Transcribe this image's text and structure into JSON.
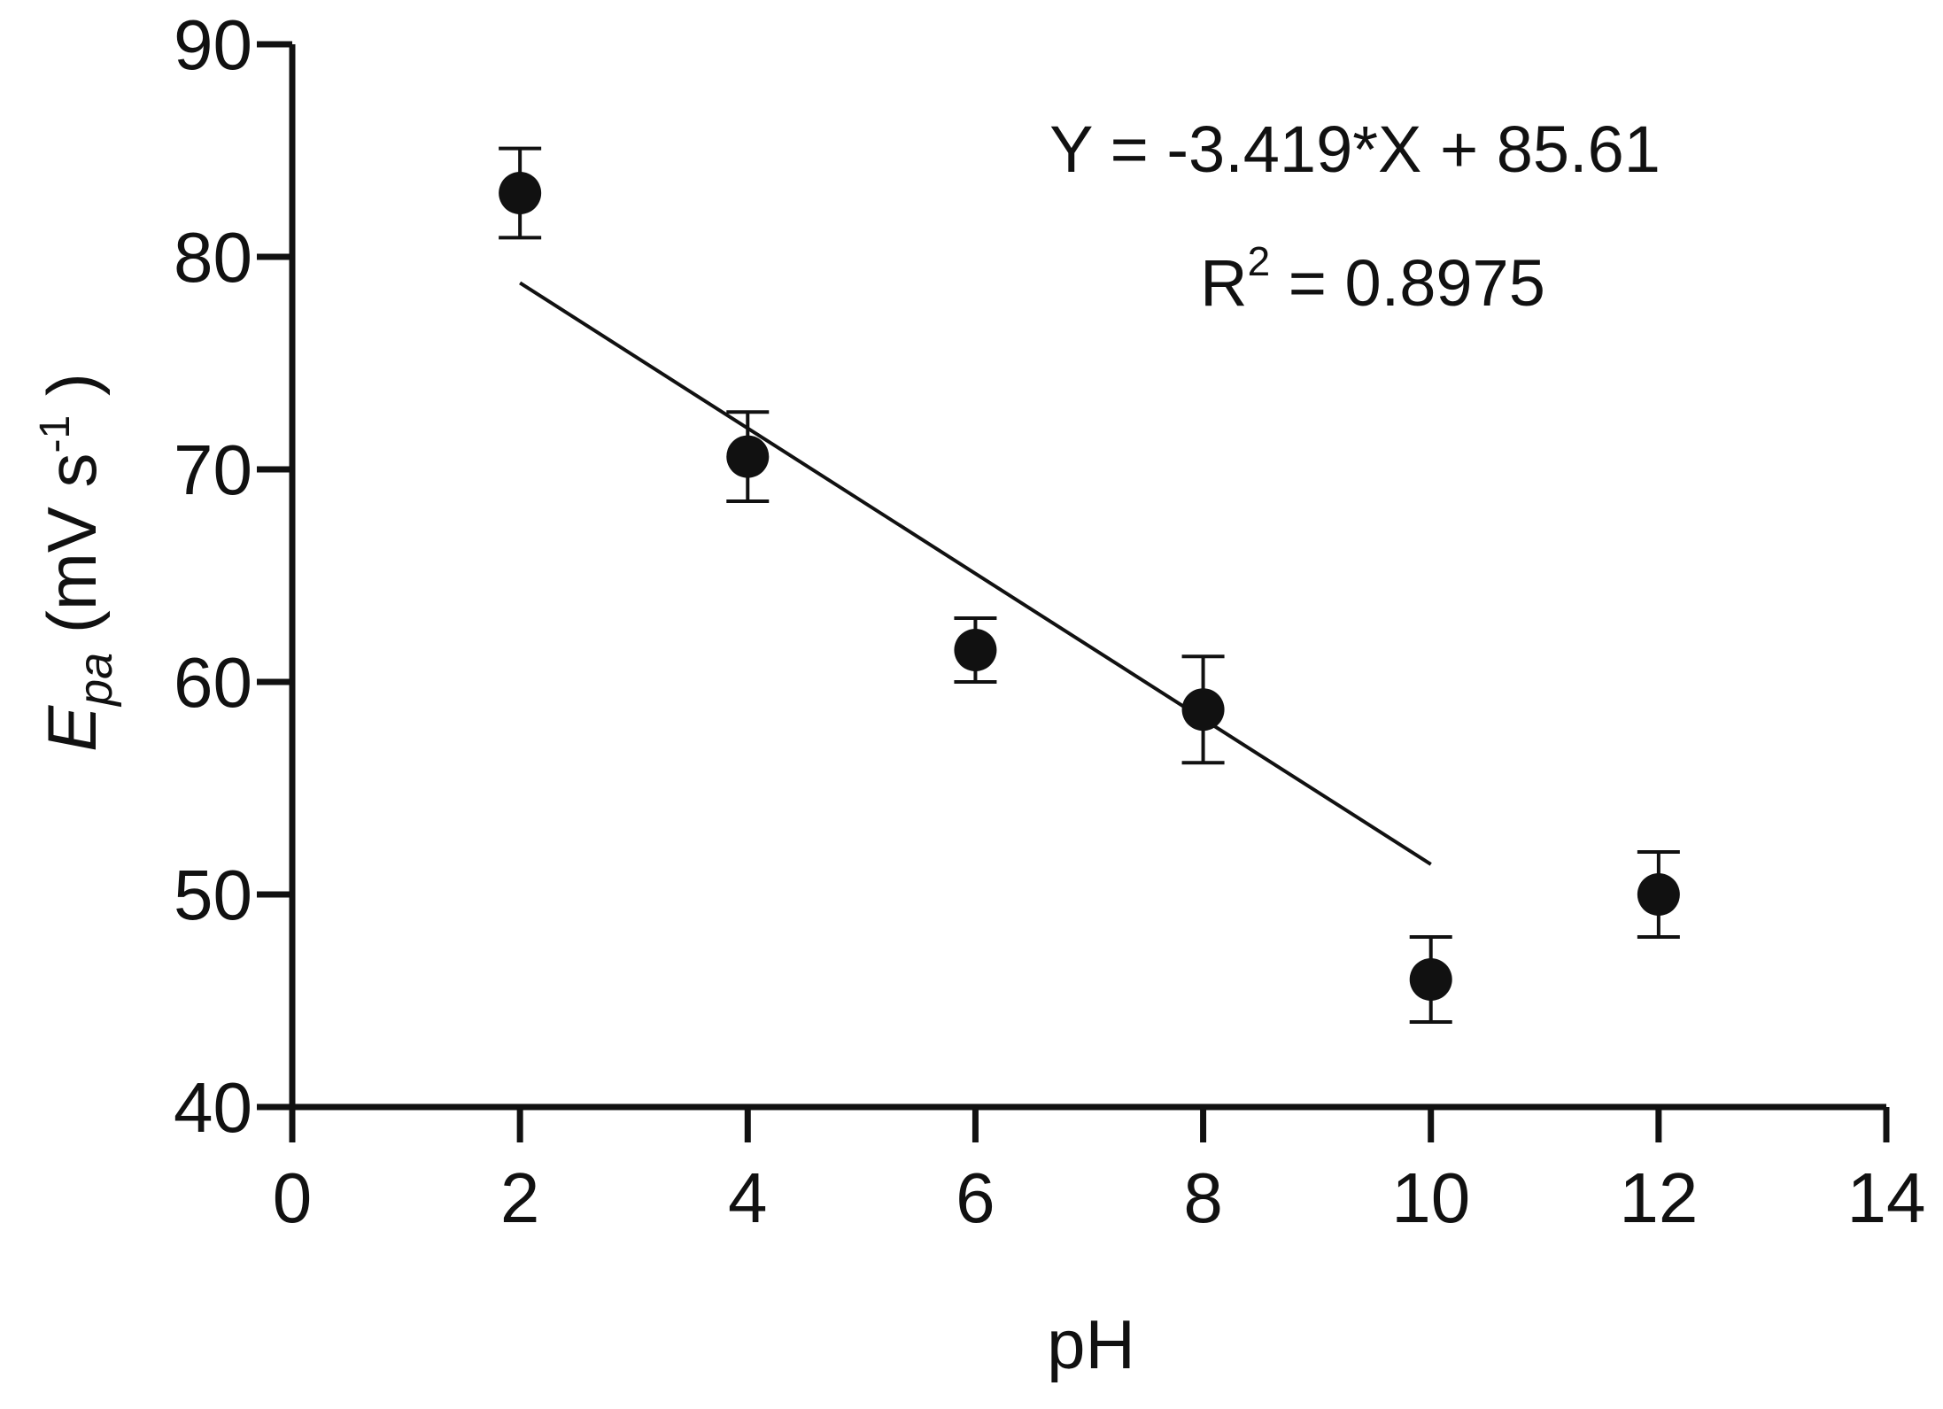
{
  "chart_data": {
    "type": "scatter",
    "xlabel": "pH",
    "ylabel": {
      "symbol": "E",
      "subscript": "pa",
      "unit_open": " (mV s",
      "unit_exp": "-1",
      "unit_close": " )"
    },
    "xlim": [
      0,
      14
    ],
    "ylim": [
      40,
      90
    ],
    "xticks": [
      0,
      2,
      4,
      6,
      8,
      10,
      12,
      14
    ],
    "yticks": [
      40,
      50,
      60,
      70,
      80,
      90
    ],
    "grid": false,
    "series": [
      {
        "points": [
          {
            "x": 2,
            "y": 83.0,
            "err": 2.1
          },
          {
            "x": 4,
            "y": 70.6,
            "err": 2.1
          },
          {
            "x": 6,
            "y": 61.5,
            "err": 1.5
          },
          {
            "x": 8,
            "y": 58.7,
            "err": 2.5
          },
          {
            "x": 10,
            "y": 46.0,
            "err": 2.0
          },
          {
            "x": 12,
            "y": 50.0,
            "err": 2.0
          }
        ]
      }
    ],
    "fit": {
      "slope": -3.419,
      "intercept": 85.61,
      "x_range": [
        2,
        10
      ]
    },
    "annotation": {
      "equation": "Y = -3.419*X + 85.61",
      "r2_prefix": "R",
      "r2_exp": "2",
      "r2_value": " = 0.8975"
    },
    "colors": {
      "marker": "#111111",
      "axis": "#111111",
      "fit_line": "#111111"
    }
  }
}
